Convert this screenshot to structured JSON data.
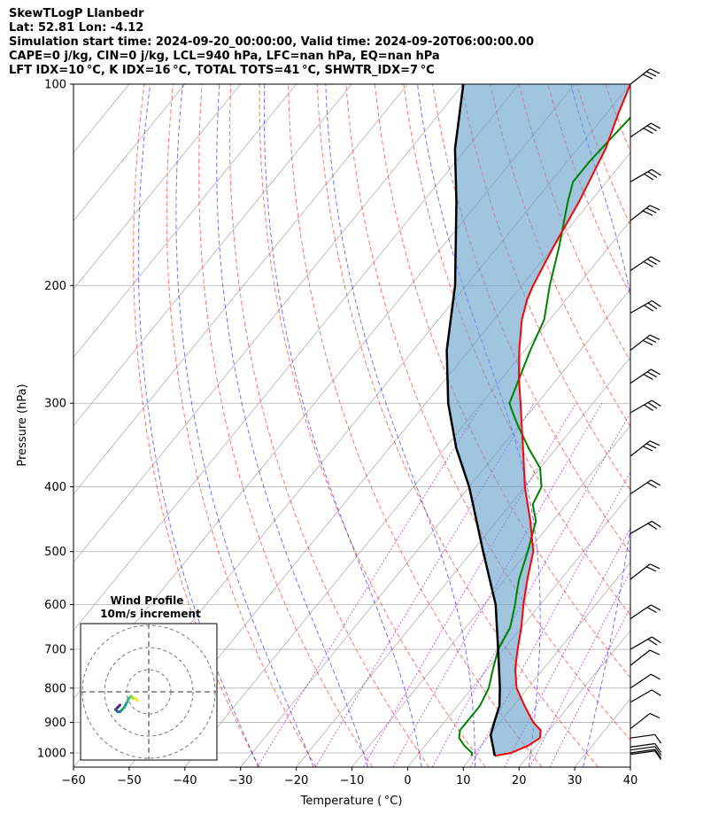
{
  "header": {
    "title": "SkewTLogP Llanbedr",
    "location": "Lat: 52.81   Lon: -4.12",
    "times": "Simulation start time: 2024-09-20_00:00:00, Valid time: 2024-09-20T06:00:00.00",
    "indices1": "CAPE=0 j/kg, CIN=0 j/kg, LCL=940 hPa, LFC=nan hPa, EQ=nan hPa",
    "indices2": "LFT IDX=10 °C, K IDX=16 °C, TOTAL TOTS=41 °C, SHWTR_IDX=7 °C"
  },
  "chart_data": {
    "type": "line",
    "subtype": "skew-t log-p diagram",
    "xlabel": "Temperature ( °C)",
    "ylabel": "Pressure (hPa)",
    "xlim": [
      -60,
      40
    ],
    "ylim_hpa": [
      1050,
      100
    ],
    "y_scale": "log",
    "x_ticks": [
      -60,
      -50,
      -40,
      -30,
      -20,
      -10,
      0,
      10,
      20,
      30,
      40
    ],
    "y_ticks": [
      100,
      200,
      300,
      400,
      500,
      600,
      700,
      800,
      900,
      1000
    ],
    "grid": true,
    "series": [
      {
        "role": "temperature",
        "color": "#ff0000",
        "pressure": [
          1010,
          1000,
          975,
          950,
          925,
          900,
          850,
          800,
          750,
          700,
          650,
          600,
          550,
          500,
          450,
          400,
          350,
          300,
          275,
          250,
          225,
          210,
          200,
          175,
          150,
          125,
          110,
          100
        ],
        "temp": [
          14,
          16.5,
          18.5,
          19.5,
          18.5,
          16,
          12,
          8,
          5,
          2.5,
          0,
          -3,
          -6,
          -9,
          -14,
          -20,
          -26,
          -33,
          -37,
          -41,
          -45,
          -47,
          -48,
          -50,
          -52,
          -55,
          -58,
          -60
        ]
      },
      {
        "role": "dewpoint",
        "color": "#008000",
        "pressure": [
          1010,
          1000,
          975,
          950,
          925,
          900,
          850,
          800,
          750,
          700,
          650,
          600,
          575,
          550,
          500,
          450,
          425,
          400,
          375,
          350,
          325,
          310,
          300,
          250,
          225,
          200,
          175,
          150,
          140,
          130,
          110,
          100
        ],
        "temp": [
          9.8,
          9.5,
          7,
          5,
          4,
          4,
          4,
          3,
          1,
          -1,
          -2,
          -4.5,
          -6,
          -7.5,
          -10,
          -13,
          -16,
          -17,
          -20,
          -25,
          -30,
          -33,
          -35,
          -39,
          -41,
          -45,
          -49,
          -54,
          -56,
          -56,
          -55,
          -55
        ]
      },
      {
        "role": "parcel",
        "color": "#000000",
        "pressure": [
          1010,
          940,
          900,
          850,
          800,
          700,
          600,
          500,
          400,
          350,
          300,
          250,
          200,
          150,
          125,
          100
        ],
        "temp": [
          14,
          10.2,
          9,
          7.5,
          5,
          -1,
          -8,
          -18,
          -30,
          -38,
          -46,
          -54,
          -62,
          -74,
          -82,
          -90
        ]
      }
    ],
    "wind_barbs_hpa": [
      1005,
      1000,
      990,
      980,
      950,
      920,
      840,
      800,
      740,
      700,
      630,
      550,
      470,
      410,
      360,
      310,
      280,
      250,
      220,
      190,
      160,
      140,
      120,
      100
    ],
    "inset": {
      "title": "Wind Profile",
      "subtitle": "10m/s increment",
      "hodograph_u": [
        -13,
        -14,
        -15,
        -14,
        -13,
        -11,
        -10,
        -9,
        -8,
        -7,
        -6,
        -5
      ],
      "hodograph_v": [
        -6,
        -7,
        -8,
        -9,
        -9,
        -7,
        -5,
        -3,
        -2,
        -3,
        -3,
        -4
      ]
    },
    "colors": {
      "temperature": "#ff0000",
      "dewpoint": "#008000",
      "parcel": "#000000",
      "cape_fill": "#5e9bc8",
      "dry_adiabat": "#ff0000",
      "moist_adiabat": "#0000ff",
      "mixing_ratio": "#9400d3",
      "isotherm": "#808080"
    }
  }
}
